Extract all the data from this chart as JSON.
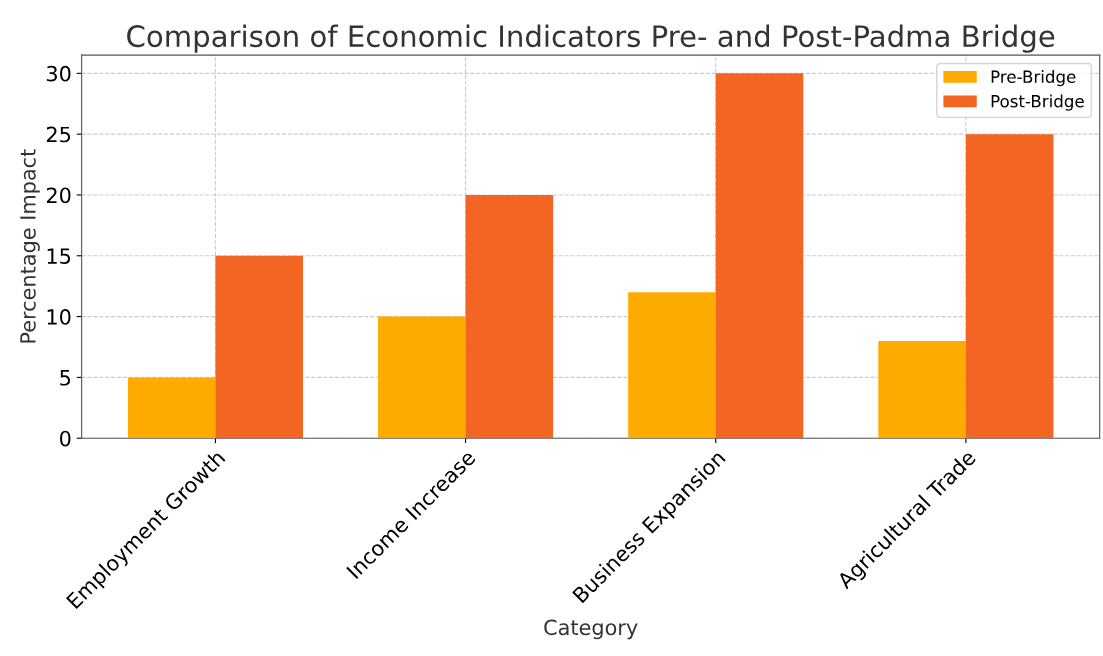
{
  "chart_data": {
    "type": "bar",
    "title": "Comparison of Economic Indicators Pre- and Post-Padma Bridge",
    "xlabel": "Category",
    "ylabel": "Percentage Impact",
    "categories": [
      "Employment Growth",
      "Income Increase",
      "Business Expansion",
      "Agricultural Trade"
    ],
    "series": [
      {
        "name": "Pre-Bridge",
        "color": "#ffaa00",
        "values": [
          5,
          10,
          12,
          8
        ]
      },
      {
        "name": "Post-Bridge",
        "color": "#f26522",
        "values": [
          15,
          20,
          30,
          25
        ]
      }
    ],
    "ylim": [
      0,
      31.5
    ],
    "yticks": [
      0,
      5,
      10,
      15,
      20,
      25,
      30
    ],
    "grid": true,
    "legend": "top right"
  }
}
